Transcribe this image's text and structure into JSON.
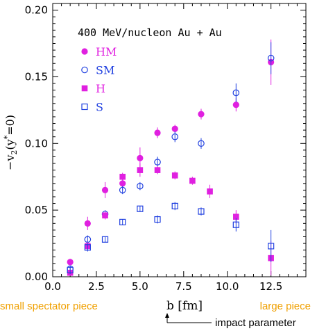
{
  "chart_data": {
    "type": "scatter",
    "title": "400 MeV/nucleon Au + Au",
    "ylabel_main": "−v",
    "ylabel_sub": "2",
    "ylabel_rest": "(y",
    "ylabel_sup": "*",
    "ylabel_end": "=0)",
    "xlabel": "b [fm]",
    "xlim": [
      0,
      14.5
    ],
    "ylim": [
      0,
      0.205
    ],
    "x_ticks": [
      "0.0",
      "2.5",
      "5.0",
      "7.5",
      "10.0",
      "12.5"
    ],
    "x_tick_values": [
      0,
      2.5,
      5.0,
      7.5,
      10.0,
      12.5
    ],
    "y_ticks": [
      "0.00",
      "0.05",
      "0.10",
      "0.15",
      "0.20"
    ],
    "y_tick_values": [
      0,
      0.05,
      0.1,
      0.15,
      0.2
    ],
    "annotations": {
      "left": "small spectator piece",
      "right": "large piece",
      "arrow": "impact parameter"
    },
    "series": [
      {
        "name": "HM",
        "marker": "circle-filled",
        "color": "#e020e0",
        "points": [
          {
            "x": 1.0,
            "y": 0.011,
            "err": 0.002
          },
          {
            "x": 2.0,
            "y": 0.04,
            "err": 0.005
          },
          {
            "x": 3.0,
            "y": 0.065,
            "err": 0.006
          },
          {
            "x": 4.0,
            "y": 0.07,
            "err": 0.005
          },
          {
            "x": 5.0,
            "y": 0.089,
            "err": 0.008
          },
          {
            "x": 6.0,
            "y": 0.108,
            "err": 0.004
          },
          {
            "x": 7.0,
            "y": 0.111,
            "err": 0.003
          },
          {
            "x": 8.5,
            "y": 0.122,
            "err": 0.004
          },
          {
            "x": 10.5,
            "y": 0.129,
            "err": 0.005
          },
          {
            "x": 12.5,
            "y": 0.161,
            "err": 0.017
          }
        ]
      },
      {
        "name": "SM",
        "marker": "circle-open",
        "color": "#2040e0",
        "points": [
          {
            "x": 1.0,
            "y": 0.006,
            "err": 0.002
          },
          {
            "x": 2.0,
            "y": 0.028,
            "err": 0.003
          },
          {
            "x": 3.0,
            "y": 0.047,
            "err": 0.003
          },
          {
            "x": 4.0,
            "y": 0.065,
            "err": 0.003
          },
          {
            "x": 5.0,
            "y": 0.068,
            "err": 0.003
          },
          {
            "x": 6.0,
            "y": 0.086,
            "err": 0.004
          },
          {
            "x": 7.0,
            "y": 0.105,
            "err": 0.004
          },
          {
            "x": 8.5,
            "y": 0.1,
            "err": 0.004
          },
          {
            "x": 10.5,
            "y": 0.138,
            "err": 0.007
          },
          {
            "x": 12.5,
            "y": 0.164,
            "err": 0.012
          }
        ]
      },
      {
        "name": "H",
        "marker": "square-filled",
        "color": "#e020e0",
        "points": [
          {
            "x": 1.0,
            "y": 0.003,
            "err": 0.002
          },
          {
            "x": 2.0,
            "y": 0.023,
            "err": 0.003
          },
          {
            "x": 3.0,
            "y": 0.046,
            "err": 0.003
          },
          {
            "x": 4.0,
            "y": 0.075,
            "err": 0.003
          },
          {
            "x": 5.0,
            "y": 0.08,
            "err": 0.005
          },
          {
            "x": 6.0,
            "y": 0.08,
            "err": 0.003
          },
          {
            "x": 7.0,
            "y": 0.076,
            "err": 0.003
          },
          {
            "x": 8.0,
            "y": 0.072,
            "err": 0.003
          },
          {
            "x": 9.0,
            "y": 0.064,
            "err": 0.005
          },
          {
            "x": 10.5,
            "y": 0.045,
            "err": 0.005
          },
          {
            "x": 12.5,
            "y": 0.014,
            "err": 0.013
          }
        ]
      },
      {
        "name": "S",
        "marker": "square-open",
        "color": "#2040e0",
        "points": [
          {
            "x": 1.0,
            "y": 0.005,
            "err": 0.003
          },
          {
            "x": 2.0,
            "y": 0.022,
            "err": 0.003
          },
          {
            "x": 3.0,
            "y": 0.028,
            "err": 0.002
          },
          {
            "x": 4.0,
            "y": 0.041,
            "err": 0.002
          },
          {
            "x": 5.0,
            "y": 0.051,
            "err": 0.002
          },
          {
            "x": 6.0,
            "y": 0.043,
            "err": 0.003
          },
          {
            "x": 7.0,
            "y": 0.053,
            "err": 0.003
          },
          {
            "x": 8.5,
            "y": 0.049,
            "err": 0.003
          },
          {
            "x": 10.5,
            "y": 0.039,
            "err": 0.005
          },
          {
            "x": 12.5,
            "y": 0.023,
            "err": 0.012
          }
        ]
      }
    ],
    "colors": {
      "axis": "#000000",
      "annotation": "#f0a000"
    }
  }
}
